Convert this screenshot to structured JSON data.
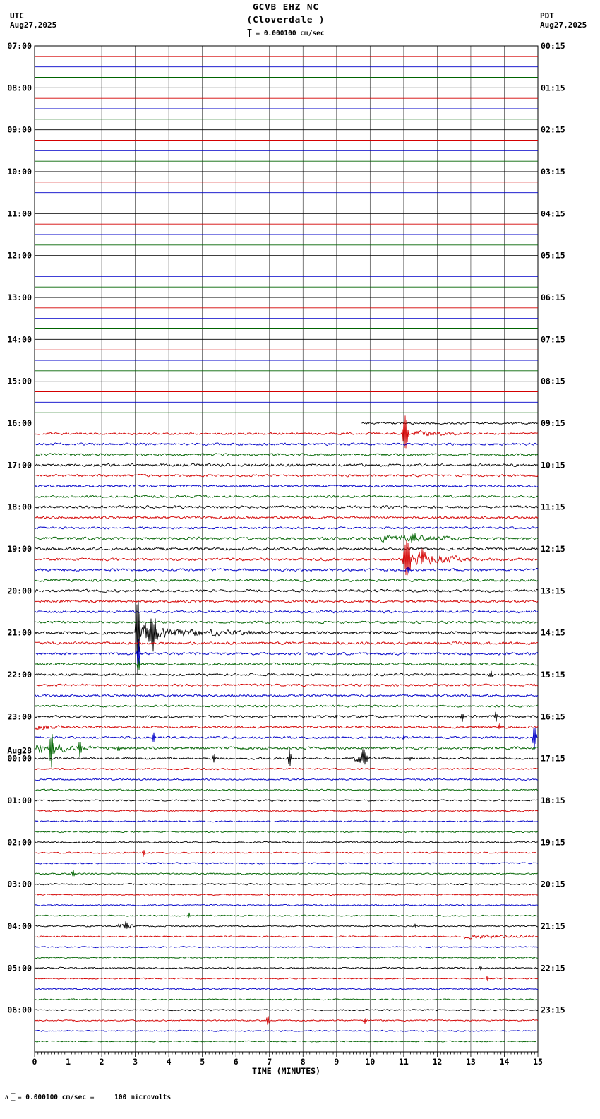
{
  "header": {
    "title": "GCVB EHZ NC",
    "subtitle": "(Cloverdale )",
    "scale_label": "= 0.000100 cm/sec",
    "left_tz": "UTC",
    "left_date": "Aug27,2025",
    "right_tz": "PDT",
    "right_date": "Aug27,2025"
  },
  "footer": {
    "prefix_symbol": "ʌ",
    "note": "= 0.000100 cm/sec =     100 microvolts"
  },
  "chart_data": {
    "type": "line",
    "title": "GCVB EHZ NC (Cloverdale ) helicorder",
    "xlabel": "TIME (MINUTES)",
    "x_range": [
      0,
      15
    ],
    "x_ticks": [
      0,
      1,
      2,
      3,
      4,
      5,
      6,
      7,
      8,
      9,
      10,
      11,
      12,
      13,
      14,
      15
    ],
    "minutes_per_row": 15,
    "grid_color": "#454545",
    "trace_colors": [
      "#000000",
      "#d40000",
      "#0000c8",
      "#006400"
    ],
    "rows": [
      {
        "utc": "07:00",
        "pdt": "00:15",
        "amp": 0
      },
      {
        "amp": 0
      },
      {
        "amp": 0
      },
      {
        "amp": 0
      },
      {
        "utc": "08:00",
        "pdt": "01:15",
        "amp": 0
      },
      {
        "amp": 0
      },
      {
        "amp": 0
      },
      {
        "amp": 0
      },
      {
        "utc": "09:00",
        "pdt": "02:15",
        "amp": 0
      },
      {
        "amp": 0
      },
      {
        "amp": 0
      },
      {
        "amp": 0
      },
      {
        "utc": "10:00",
        "pdt": "03:15",
        "amp": 0
      },
      {
        "amp": 0
      },
      {
        "amp": 0
      },
      {
        "amp": 0
      },
      {
        "utc": "11:00",
        "pdt": "04:15",
        "amp": 0
      },
      {
        "amp": 0
      },
      {
        "amp": 0
      },
      {
        "amp": 0
      },
      {
        "utc": "12:00",
        "pdt": "05:15",
        "amp": 0
      },
      {
        "amp": 0
      },
      {
        "amp": 0
      },
      {
        "amp": 0
      },
      {
        "utc": "13:00",
        "pdt": "06:15",
        "amp": 0
      },
      {
        "amp": 0
      },
      {
        "amp": 0
      },
      {
        "amp": 0
      },
      {
        "utc": "14:00",
        "pdt": "07:15",
        "amp": 0
      },
      {
        "amp": 0
      },
      {
        "amp": 0
      },
      {
        "amp": 0
      },
      {
        "utc": "15:00",
        "pdt": "08:15",
        "amp": 0
      },
      {
        "amp": 0
      },
      {
        "amp": 0
      },
      {
        "amp": 0
      },
      {
        "utc": "16:00",
        "pdt": "09:15",
        "amp": 1.8,
        "start": 9.75
      },
      {
        "amp": 1.9,
        "events": [
          {
            "k": "spike",
            "t": 11.05,
            "a": 26,
            "w": 0.22
          },
          {
            "k": "burst",
            "t0": 11.05,
            "t1": 12.6,
            "a": 5
          }
        ]
      },
      {
        "amp": 2.1
      },
      {
        "amp": 2.1
      },
      {
        "utc": "17:00",
        "pdt": "10:15",
        "amp": 2.4
      },
      {
        "amp": 2.1
      },
      {
        "amp": 2.1
      },
      {
        "amp": 2.1
      },
      {
        "utc": "18:00",
        "pdt": "11:15",
        "amp": 2.4
      },
      {
        "amp": 2.1
      },
      {
        "amp": 2.1
      },
      {
        "amp": 2.4,
        "events": [
          {
            "k": "burst",
            "t0": 10.3,
            "t1": 12.8,
            "a": 5
          },
          {
            "k": "spike",
            "t": 11.3,
            "a": 7,
            "w": 0.3
          }
        ]
      },
      {
        "utc": "19:00",
        "pdt": "12:15",
        "amp": 2.4
      },
      {
        "amp": 2.4,
        "events": [
          {
            "k": "spike",
            "t": 11.1,
            "a": 30,
            "w": 0.3
          },
          {
            "k": "spike",
            "t": 11.55,
            "a": 12,
            "w": 0.2
          },
          {
            "k": "burst",
            "t0": 11.1,
            "t1": 13.2,
            "a": 9
          }
        ]
      },
      {
        "amp": 2.4,
        "events": [
          {
            "k": "spike",
            "t": 11.15,
            "a": 5,
            "w": 0.15
          }
        ]
      },
      {
        "amp": 2.4
      },
      {
        "utc": "20:00",
        "pdt": "13:15",
        "amp": 2.4
      },
      {
        "amp": 2.2
      },
      {
        "amp": 2.2
      },
      {
        "amp": 2.2
      },
      {
        "utc": "21:00",
        "pdt": "14:15",
        "amp": 2.7,
        "events": [
          {
            "k": "spike",
            "t": 3.08,
            "a": 58,
            "w": 0.18
          },
          {
            "k": "spike",
            "t": 3.5,
            "a": 20,
            "w": 0.5
          },
          {
            "k": "burst",
            "t0": 3.05,
            "t1": 4.4,
            "a": 17
          },
          {
            "k": "burst",
            "t0": 4.4,
            "t1": 6.8,
            "a": 5
          }
        ]
      },
      {
        "amp": 2.4
      },
      {
        "amp": 2.2,
        "events": [
          {
            "k": "spike",
            "t": 3.1,
            "a": 24,
            "w": 0.12
          }
        ]
      },
      {
        "amp": 2.2,
        "events": [
          {
            "k": "spike",
            "t": 3.1,
            "a": 12,
            "w": 0.1
          }
        ]
      },
      {
        "utc": "22:00",
        "pdt": "15:15",
        "amp": 2.2,
        "events": [
          {
            "k": "spike",
            "t": 13.6,
            "a": 5,
            "w": 0.12
          }
        ]
      },
      {
        "amp": 2.1
      },
      {
        "amp": 2.0
      },
      {
        "amp": 2.0
      },
      {
        "utc": "23:00",
        "pdt": "16:15",
        "amp": 2.2,
        "events": [
          {
            "k": "spike",
            "t": 9.0,
            "a": 4,
            "w": 0.1
          },
          {
            "k": "spike",
            "t": 12.75,
            "a": 6,
            "w": 0.12
          },
          {
            "k": "spike",
            "t": 13.75,
            "a": 7,
            "w": 0.12
          }
        ]
      },
      {
        "amp": 2.1,
        "events": [
          {
            "k": "burst",
            "t0": 0.0,
            "t1": 0.9,
            "a": 4
          },
          {
            "k": "spike",
            "t": 13.85,
            "a": 5,
            "w": 0.1
          }
        ]
      },
      {
        "amp": 2.0,
        "events": [
          {
            "k": "spike",
            "t": 3.55,
            "a": 8,
            "w": 0.12
          },
          {
            "k": "spike",
            "t": 11.0,
            "a": 4,
            "w": 0.1
          },
          {
            "k": "spike",
            "t": 14.9,
            "a": 18,
            "w": 0.15
          }
        ]
      },
      {
        "amp": 2.4,
        "events": [
          {
            "k": "burst",
            "t0": 0.05,
            "t1": 1.7,
            "a": 8
          },
          {
            "k": "spike",
            "t": 0.5,
            "a": 22,
            "w": 0.2
          },
          {
            "k": "spike",
            "t": 1.35,
            "a": 11,
            "w": 0.15
          },
          {
            "k": "spike",
            "t": 2.5,
            "a": 4,
            "w": 0.1
          }
        ]
      },
      {
        "utc": "00:00",
        "utc_above": "Aug28",
        "pdt": "17:15",
        "amp": 1.7,
        "events": [
          {
            "k": "spike",
            "t": 5.35,
            "a": 6,
            "w": 0.12
          },
          {
            "k": "spike",
            "t": 7.6,
            "a": 14,
            "w": 0.12
          },
          {
            "k": "burst",
            "t0": 9.55,
            "t1": 10.15,
            "a": 8
          },
          {
            "k": "spike",
            "t": 9.8,
            "a": 10,
            "w": 0.3
          },
          {
            "k": "spike",
            "t": 11.2,
            "a": 3,
            "w": 0.1
          }
        ]
      },
      {
        "amp": 1.5
      },
      {
        "amp": 1.4
      },
      {
        "amp": 1.4
      },
      {
        "utc": "01:00",
        "pdt": "18:15",
        "amp": 1.5
      },
      {
        "amp": 1.4
      },
      {
        "amp": 1.3
      },
      {
        "amp": 1.3
      },
      {
        "utc": "02:00",
        "pdt": "19:15",
        "amp": 1.4
      },
      {
        "amp": 1.3,
        "events": [
          {
            "k": "spike",
            "t": 3.25,
            "a": 6,
            "w": 0.1
          }
        ]
      },
      {
        "amp": 1.3
      },
      {
        "amp": 1.3,
        "events": [
          {
            "k": "spike",
            "t": 1.15,
            "a": 5,
            "w": 0.12
          }
        ]
      },
      {
        "utc": "03:00",
        "pdt": "20:15",
        "amp": 1.4
      },
      {
        "amp": 1.2
      },
      {
        "amp": 1.2
      },
      {
        "amp": 1.2,
        "events": [
          {
            "k": "spike",
            "t": 4.6,
            "a": 4,
            "w": 0.1
          }
        ]
      },
      {
        "utc": "04:00",
        "pdt": "21:15",
        "amp": 1.3,
        "events": [
          {
            "k": "burst",
            "t0": 2.5,
            "t1": 3.0,
            "a": 6
          },
          {
            "k": "spike",
            "t": 2.72,
            "a": 7,
            "w": 0.18
          },
          {
            "k": "spike",
            "t": 11.35,
            "a": 3,
            "w": 0.1
          }
        ]
      },
      {
        "amp": 1.3,
        "events": [
          {
            "k": "burst",
            "t0": 12.8,
            "t1": 15.0,
            "a": 3
          }
        ]
      },
      {
        "amp": 1.2
      },
      {
        "amp": 1.2
      },
      {
        "utc": "05:00",
        "pdt": "22:15",
        "amp": 1.3,
        "events": [
          {
            "k": "spike",
            "t": 13.3,
            "a": 3,
            "w": 0.1
          }
        ]
      },
      {
        "amp": 1.2,
        "events": [
          {
            "k": "spike",
            "t": 13.5,
            "a": 4,
            "w": 0.1
          }
        ]
      },
      {
        "amp": 1.2
      },
      {
        "amp": 1.2
      },
      {
        "utc": "06:00",
        "pdt": "23:15",
        "amp": 1.3
      },
      {
        "amp": 1.2,
        "events": [
          {
            "k": "spike",
            "t": 6.95,
            "a": 7,
            "w": 0.12
          },
          {
            "k": "spike",
            "t": 9.85,
            "a": 4,
            "w": 0.1
          }
        ]
      },
      {
        "amp": 1.2
      },
      {
        "amp": 1.1
      }
    ]
  }
}
